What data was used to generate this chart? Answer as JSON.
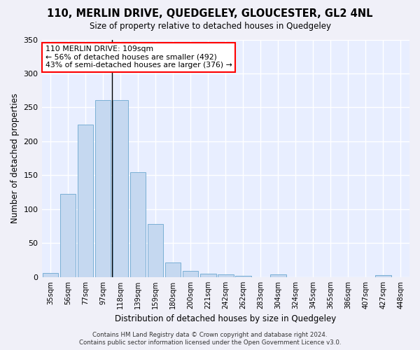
{
  "title": "110, MERLIN DRIVE, QUEDGELEY, GLOUCESTER, GL2 4NL",
  "subtitle": "Size of property relative to detached houses in Quedgeley",
  "xlabel": "Distribution of detached houses by size in Quedgeley",
  "ylabel": "Number of detached properties",
  "bar_color": "#c5d8f0",
  "bar_edge_color": "#7aafd4",
  "background_color": "#e8eeff",
  "grid_color": "#ffffff",
  "fig_background": "#f0f0f8",
  "categories": [
    "35sqm",
    "56sqm",
    "77sqm",
    "97sqm",
    "118sqm",
    "139sqm",
    "159sqm",
    "180sqm",
    "200sqm",
    "221sqm",
    "242sqm",
    "262sqm",
    "283sqm",
    "304sqm",
    "324sqm",
    "345sqm",
    "365sqm",
    "386sqm",
    "407sqm",
    "427sqm",
    "448sqm"
  ],
  "values": [
    6,
    123,
    225,
    261,
    261,
    155,
    78,
    22,
    9,
    5,
    4,
    2,
    0,
    4,
    0,
    0,
    0,
    0,
    0,
    3,
    0
  ],
  "ylim": [
    0,
    350
  ],
  "yticks": [
    0,
    50,
    100,
    150,
    200,
    250,
    300,
    350
  ],
  "property_bar_index": 4,
  "vline_x": 3.5,
  "annotation_text_line1": "110 MERLIN DRIVE: 109sqm",
  "annotation_text_line2": "← 56% of detached houses are smaller (492)",
  "annotation_text_line3": "43% of semi-detached houses are larger (376) →",
  "footer_line1": "Contains HM Land Registry data © Crown copyright and database right 2024.",
  "footer_line2": "Contains public sector information licensed under the Open Government Licence v3.0."
}
